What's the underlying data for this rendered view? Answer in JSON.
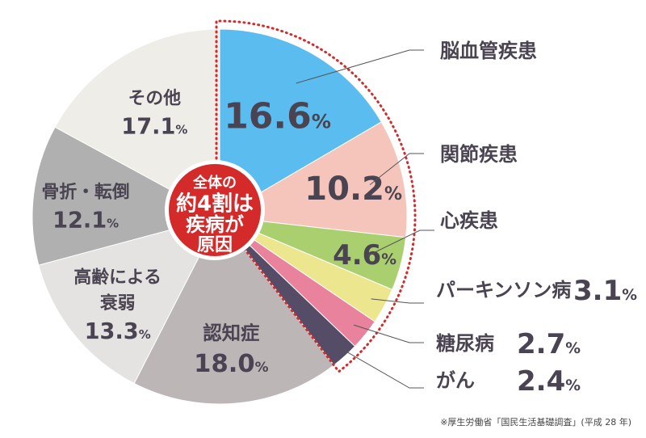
{
  "chart_data": {
    "type": "pie",
    "center_label": [
      "全体の",
      "約4割は",
      "疾病が",
      "原因"
    ],
    "highlight_note": "約4割",
    "slices": [
      {
        "label": "脳血管疾患",
        "value": 16.6,
        "value_text": "16.6",
        "color": "#5bbdef",
        "label_position": "outside"
      },
      {
        "label": "関節疾患",
        "value": 10.2,
        "value_text": "10.2",
        "color": "#f5c4bb",
        "label_position": "outside"
      },
      {
        "label": "心疾患",
        "value": 4.6,
        "value_text": "4.6",
        "color": "#a9cf6e",
        "label_position": "outside"
      },
      {
        "label": "パーキンソン病",
        "value": 3.1,
        "value_text": "3.1",
        "color": "#ece68f",
        "label_position": "outside"
      },
      {
        "label": "糖尿病",
        "value": 2.7,
        "value_text": "2.7",
        "color": "#e9829c",
        "label_position": "outside"
      },
      {
        "label": "がん",
        "value": 2.4,
        "value_text": "2.4",
        "color": "#554c68",
        "label_position": "outside"
      },
      {
        "label": "認知症",
        "value": 18.0,
        "value_text": "18.0",
        "color": "#bcb6b6",
        "label_position": "inside"
      },
      {
        "label": "高齢による衰弱",
        "value": 13.3,
        "value_text": "13.3",
        "color": "#e4e3e1",
        "label_position": "inside"
      },
      {
        "label": "骨折・転倒",
        "value": 12.1,
        "value_text": "12.1",
        "color": "#b0b0b0",
        "label_position": "inside"
      },
      {
        "label": "その他",
        "value": 17.1,
        "value_text": "17.1",
        "color": "#efede7",
        "label_position": "inside"
      }
    ],
    "unit": "%",
    "highlight_color": "#d42a2a"
  },
  "source_note": "※厚生労働省「国民生活基礎調査」(平成 28 年)"
}
